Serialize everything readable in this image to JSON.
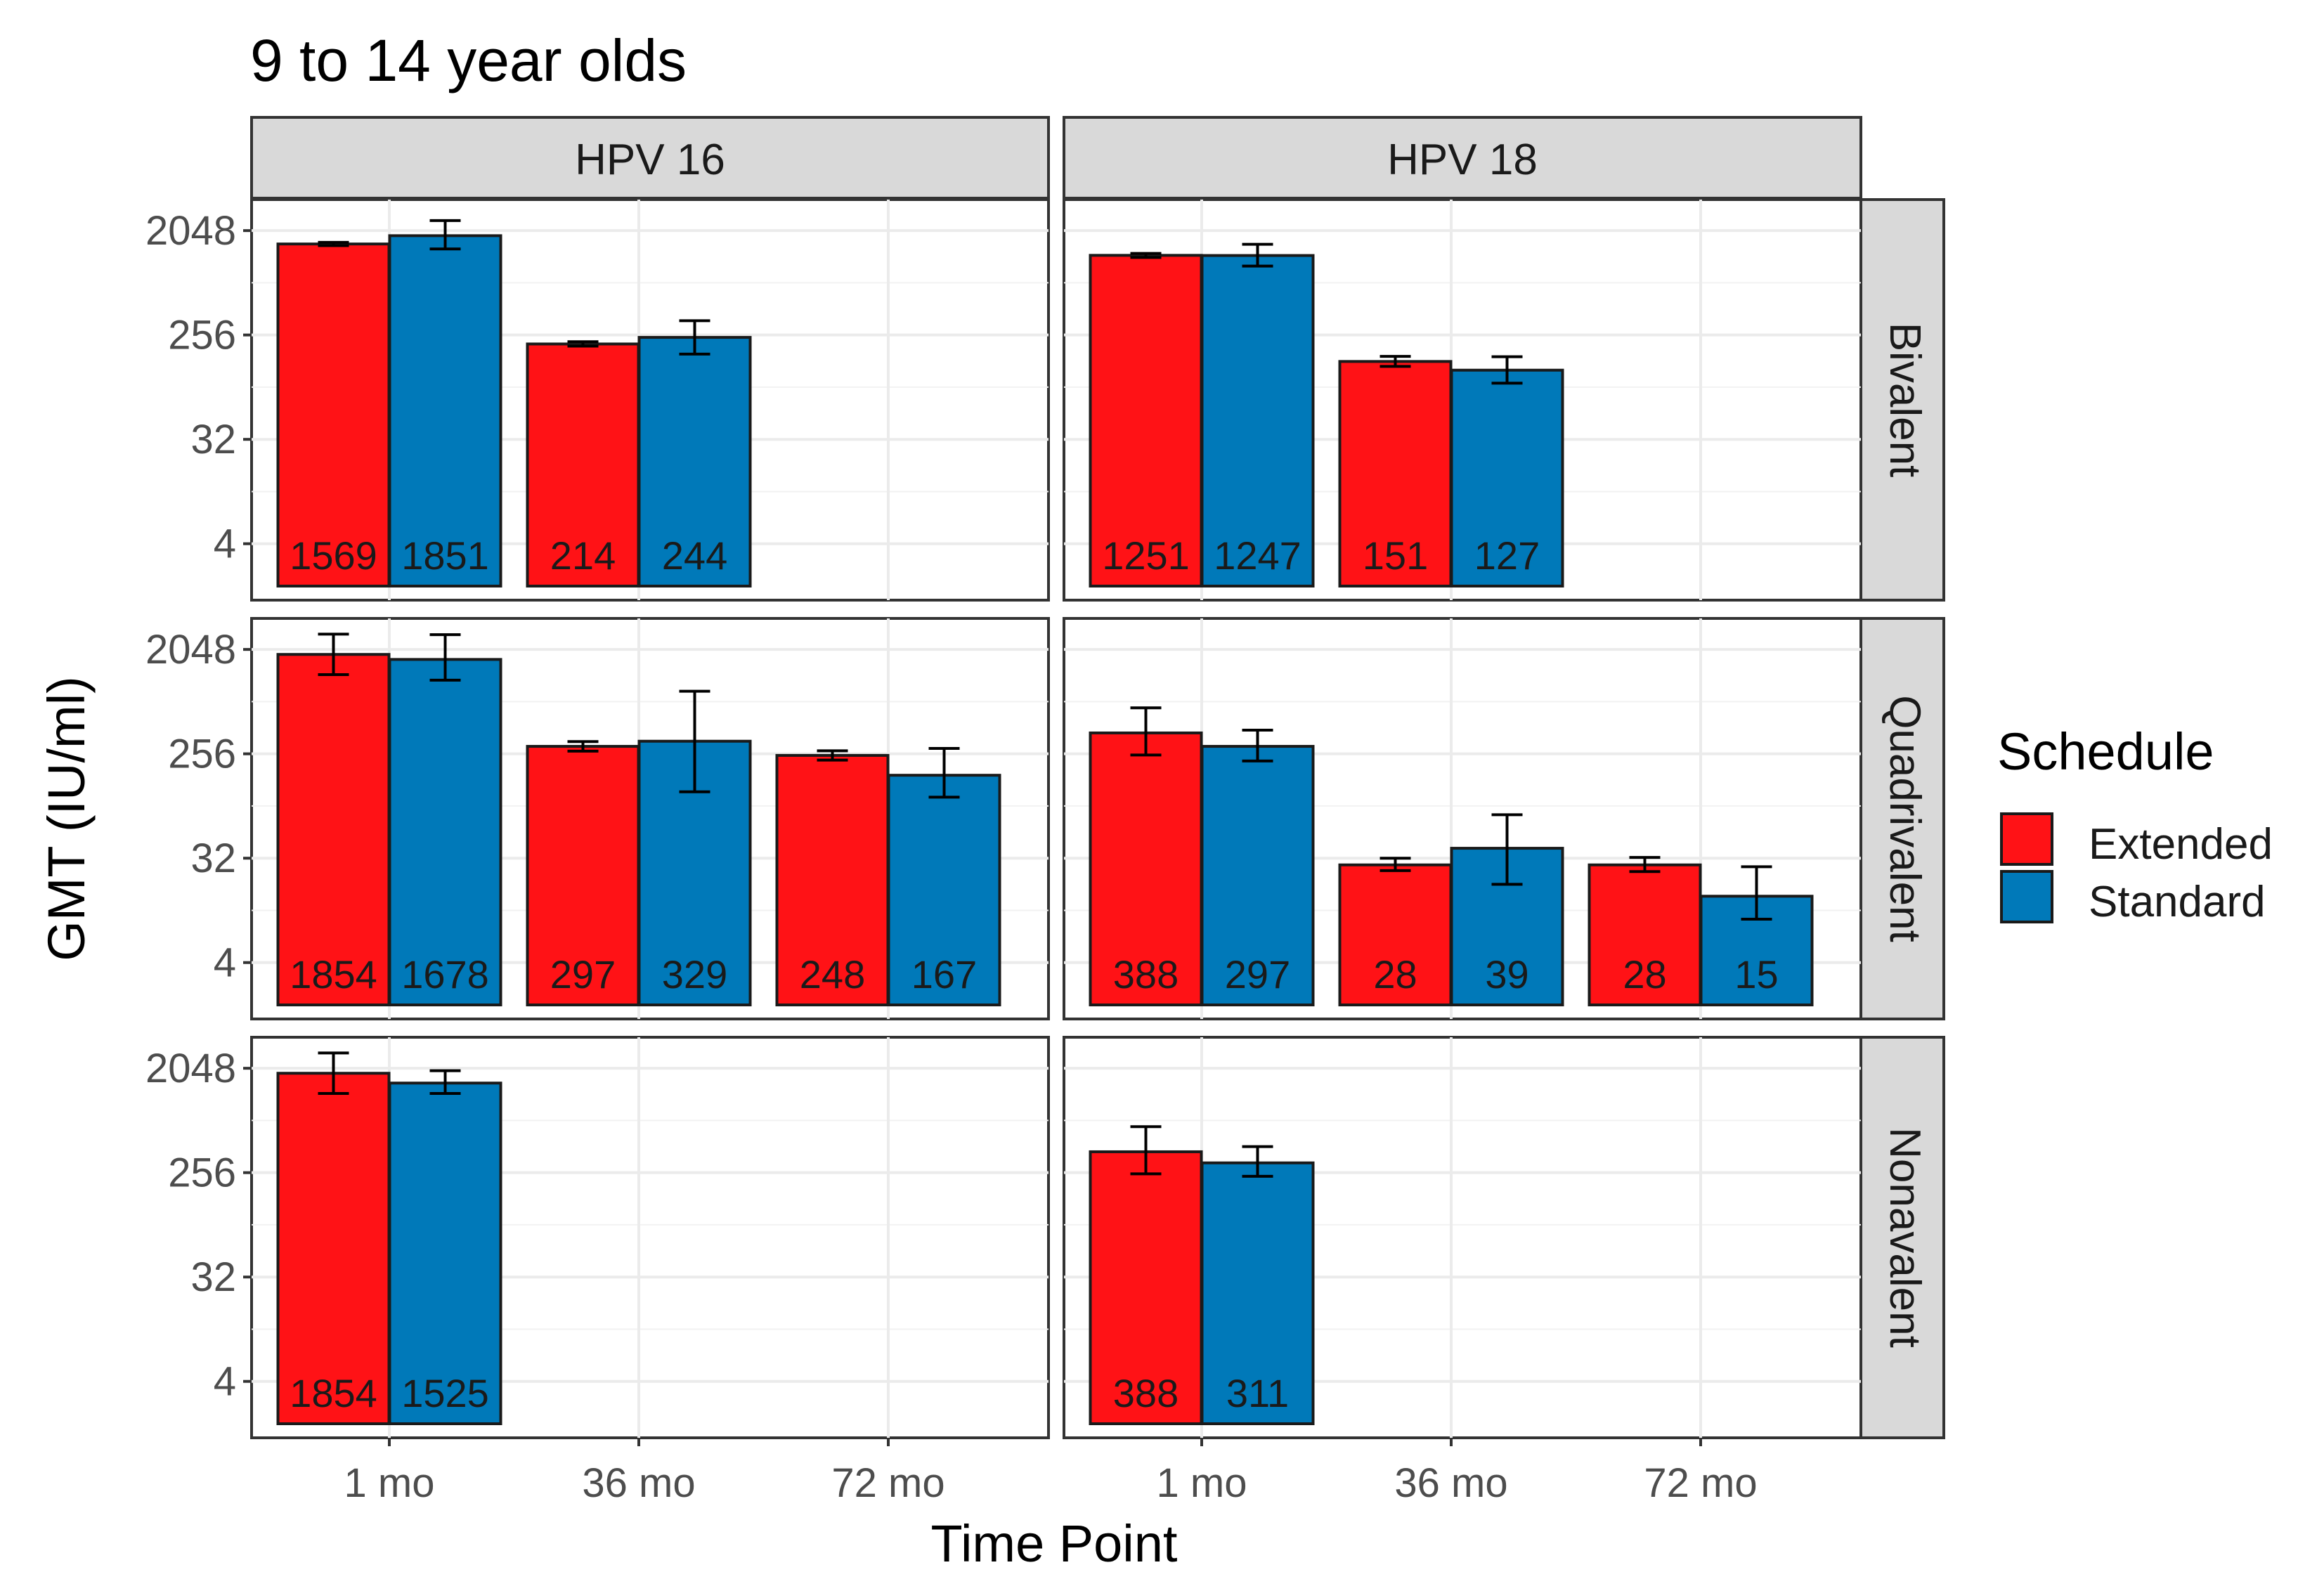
{
  "chart_data": {
    "type": "bar",
    "title": "9 to 14 year olds",
    "xlabel": "Time Point",
    "ylabel": "GMT (IU/ml)",
    "y_scale": "log2",
    "y_ticks": [
      4,
      32,
      256,
      2048
    ],
    "y_tick_labels": [
      "4",
      "32",
      "256",
      "2048"
    ],
    "ylim": [
      1.3,
      3800
    ],
    "categories": [
      "1 mo",
      "36 mo",
      "72 mo"
    ],
    "facet_columns": [
      "HPV 16",
      "HPV 18"
    ],
    "facet_rows": [
      "Bivalent",
      "Quadrivalent",
      "Nonavalent"
    ],
    "legend": {
      "title": "Schedule",
      "entries": [
        {
          "name": "Extended",
          "color": "#ff1216"
        },
        {
          "name": "Standard",
          "color": "#0079b9"
        }
      ]
    },
    "panels": [
      {
        "col": "HPV 16",
        "row": "Bivalent",
        "bars": [
          {
            "category": "1 mo",
            "schedule": "Extended",
            "value": 1569,
            "lower": 1520,
            "upper": 1620,
            "n": "1569"
          },
          {
            "category": "1 mo",
            "schedule": "Standard",
            "value": 1851,
            "lower": 1420,
            "upper": 2500,
            "n": "1851"
          },
          {
            "category": "36 mo",
            "schedule": "Extended",
            "value": 214,
            "lower": 205,
            "upper": 224,
            "n": "214"
          },
          {
            "category": "36 mo",
            "schedule": "Standard",
            "value": 244,
            "lower": 175,
            "upper": 340,
            "n": "244"
          }
        ]
      },
      {
        "col": "HPV 18",
        "row": "Bivalent",
        "bars": [
          {
            "category": "1 mo",
            "schedule": "Extended",
            "value": 1251,
            "lower": 1200,
            "upper": 1300,
            "n": "1251"
          },
          {
            "category": "1 mo",
            "schedule": "Standard",
            "value": 1247,
            "lower": 1010,
            "upper": 1560,
            "n": "1247"
          },
          {
            "category": "36 mo",
            "schedule": "Extended",
            "value": 151,
            "lower": 137,
            "upper": 167,
            "n": "151"
          },
          {
            "category": "36 mo",
            "schedule": "Standard",
            "value": 127,
            "lower": 98,
            "upper": 166,
            "n": "127"
          }
        ]
      },
      {
        "col": "HPV 16",
        "row": "Quadrivalent",
        "bars": [
          {
            "category": "1 mo",
            "schedule": "Extended",
            "value": 1854,
            "lower": 1240,
            "upper": 2780,
            "n": "1854"
          },
          {
            "category": "1 mo",
            "schedule": "Standard",
            "value": 1678,
            "lower": 1110,
            "upper": 2750,
            "n": "1678"
          },
          {
            "category": "36 mo",
            "schedule": "Extended",
            "value": 297,
            "lower": 270,
            "upper": 327,
            "n": "297"
          },
          {
            "category": "36 mo",
            "schedule": "Standard",
            "value": 329,
            "lower": 120,
            "upper": 890,
            "n": "329"
          },
          {
            "category": "72 mo",
            "schedule": "Extended",
            "value": 248,
            "lower": 226,
            "upper": 272,
            "n": "248"
          },
          {
            "category": "72 mo",
            "schedule": "Standard",
            "value": 167,
            "lower": 108,
            "upper": 285,
            "n": "167"
          }
        ]
      },
      {
        "col": "HPV 18",
        "row": "Quadrivalent",
        "bars": [
          {
            "category": "1 mo",
            "schedule": "Extended",
            "value": 388,
            "lower": 250,
            "upper": 640,
            "n": "388"
          },
          {
            "category": "1 mo",
            "schedule": "Standard",
            "value": 297,
            "lower": 222,
            "upper": 410,
            "n": "297"
          },
          {
            "category": "36 mo",
            "schedule": "Extended",
            "value": 28,
            "lower": 25,
            "upper": 32,
            "n": "28"
          },
          {
            "category": "36 mo",
            "schedule": "Standard",
            "value": 39,
            "lower": 19,
            "upper": 76,
            "n": "39"
          },
          {
            "category": "72 mo",
            "schedule": "Extended",
            "value": 28,
            "lower": 24.5,
            "upper": 32.5,
            "n": "28"
          },
          {
            "category": "72 mo",
            "schedule": "Standard",
            "value": 15,
            "lower": 9.5,
            "upper": 27,
            "n": "15"
          }
        ]
      },
      {
        "col": "HPV 16",
        "row": "Nonavalent",
        "bars": [
          {
            "category": "1 mo",
            "schedule": "Extended",
            "value": 1854,
            "lower": 1240,
            "upper": 2780,
            "n": "1854"
          },
          {
            "category": "1 mo",
            "schedule": "Standard",
            "value": 1525,
            "lower": 1240,
            "upper": 1950,
            "n": "1525"
          }
        ]
      },
      {
        "col": "HPV 18",
        "row": "Nonavalent",
        "bars": [
          {
            "category": "1 mo",
            "schedule": "Extended",
            "value": 388,
            "lower": 250,
            "upper": 640,
            "n": "388"
          },
          {
            "category": "1 mo",
            "schedule": "Standard",
            "value": 311,
            "lower": 238,
            "upper": 430,
            "n": "311"
          }
        ]
      }
    ]
  }
}
